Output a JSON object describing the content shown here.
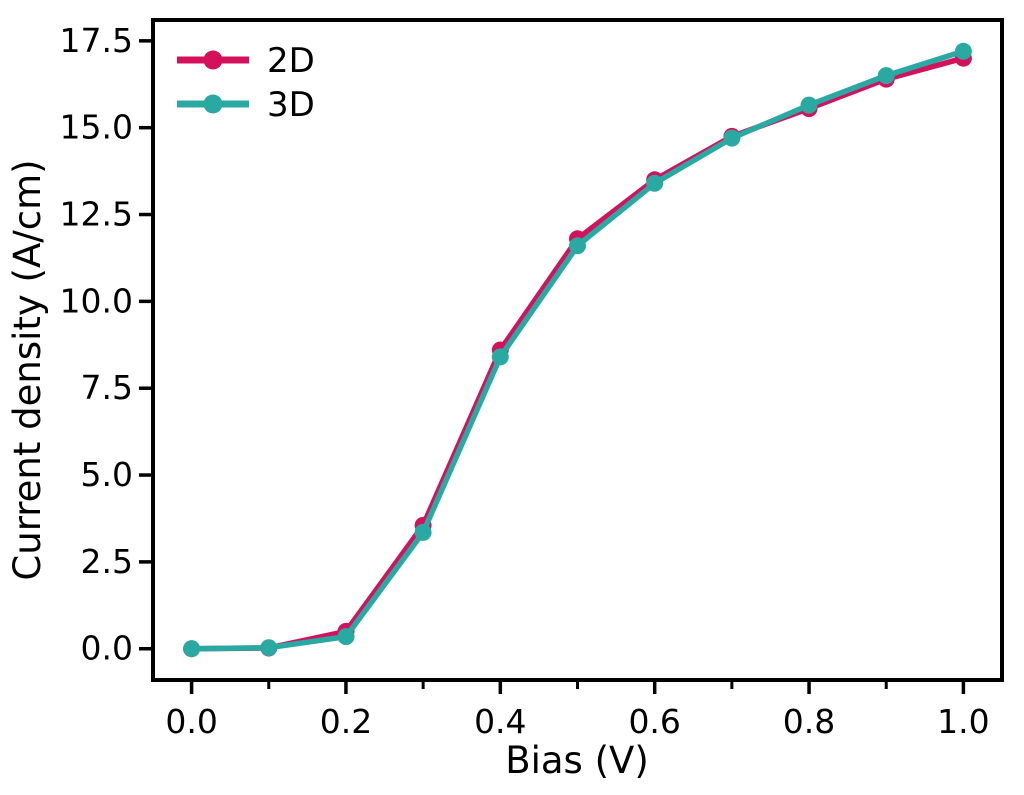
{
  "chart_data": {
    "type": "line",
    "title": "",
    "xlabel": "Bias (V)",
    "ylabel": "Current density (A/cm)",
    "x": [
      0.0,
      0.1,
      0.2,
      0.3,
      0.4,
      0.5,
      0.6,
      0.7,
      0.8,
      0.9,
      1.0
    ],
    "series": [
      {
        "name": "2D",
        "color": "#D4125C",
        "marker": "circle",
        "values": [
          0.0,
          0.02,
          0.5,
          3.55,
          8.6,
          11.8,
          13.5,
          14.75,
          15.55,
          16.4,
          17.0
        ]
      },
      {
        "name": "3D",
        "color": "#2AA9A3",
        "marker": "circle",
        "values": [
          0.0,
          0.03,
          0.35,
          3.35,
          8.4,
          11.6,
          13.4,
          14.7,
          15.65,
          16.5,
          17.2
        ]
      }
    ],
    "xticks": {
      "values": [
        0.0,
        0.2,
        0.4,
        0.6,
        0.8,
        1.0
      ],
      "labels": [
        "0.0",
        "0.2",
        "0.4",
        "0.6",
        "0.8",
        "1.0"
      ],
      "minor": [
        0.1,
        0.3,
        0.5,
        0.7,
        0.9
      ]
    },
    "yticks": {
      "values": [
        0.0,
        2.5,
        5.0,
        7.5,
        10.0,
        12.5,
        15.0,
        17.5
      ],
      "labels": [
        "0.0",
        "2.5",
        "5.0",
        "7.5",
        "10.0",
        "12.5",
        "15.0",
        "17.5"
      ],
      "minor": []
    },
    "xlim": [
      -0.05,
      1.05
    ],
    "ylim": [
      -0.9,
      18.1
    ],
    "grid": false,
    "legend": {
      "position": "upper-left",
      "entries": [
        "2D",
        "3D"
      ]
    },
    "axis_color": "#000000",
    "background": "#ffffff"
  }
}
